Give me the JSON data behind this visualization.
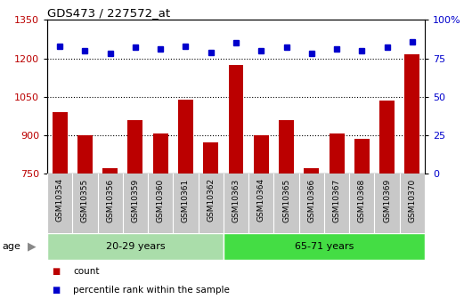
{
  "title": "GDS473 / 227572_at",
  "categories": [
    "GSM10354",
    "GSM10355",
    "GSM10356",
    "GSM10359",
    "GSM10360",
    "GSM10361",
    "GSM10362",
    "GSM10363",
    "GSM10364",
    "GSM10365",
    "GSM10366",
    "GSM10367",
    "GSM10368",
    "GSM10369",
    "GSM10370"
  ],
  "bar_values": [
    990,
    900,
    770,
    960,
    905,
    1040,
    870,
    1175,
    900,
    960,
    770,
    905,
    885,
    1035,
    1215
  ],
  "dot_values": [
    83,
    80,
    78,
    82,
    81,
    83,
    79,
    85,
    80,
    82,
    78,
    81,
    80,
    82,
    86
  ],
  "bar_color": "#bb0000",
  "dot_color": "#0000cc",
  "ylim_left": [
    750,
    1350
  ],
  "ylim_right": [
    0,
    100
  ],
  "yticks_left": [
    750,
    900,
    1050,
    1200,
    1350
  ],
  "yticks_right": [
    0,
    25,
    50,
    75,
    100
  ],
  "group1_label": "20-29 years",
  "group2_label": "65-71 years",
  "group1_count": 7,
  "group2_count": 8,
  "age_label": "age",
  "legend_bar_label": "count",
  "legend_dot_label": "percentile rank within the sample",
  "group1_color": "#aaddaa",
  "group2_color": "#44dd44",
  "bar_width": 0.6,
  "tick_area_color": "#c8c8c8",
  "gridline_vals": [
    900,
    1050,
    1200
  ]
}
